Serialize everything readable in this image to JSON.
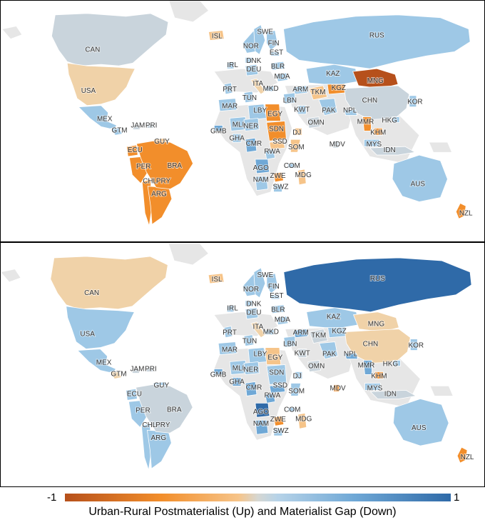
{
  "colors": {
    "neg_strong": "#b6501b",
    "neg_mid": "#f28e2b",
    "neg_light": "#f6c489",
    "tan": "#f0d2a8",
    "neutral": "#c9d4dc",
    "pos_light": "#9ec8e6",
    "pos_mid": "#6fa8d6",
    "pos_strong": "#2f6aa8",
    "land_na": "#e6e6e6",
    "ocean": "#ffffff"
  },
  "legend": {
    "min_label": "-1",
    "max_label": "1",
    "title": "Urban-Rural Postmaterialist (Up) and Materialist Gap (Down)"
  },
  "panels": [
    {
      "id": "postmaterialist",
      "countries": {
        "CAN": {
          "label": "CAN",
          "value": 0.0
        },
        "USA": {
          "label": "USA",
          "value": -0.3
        },
        "MEX": {
          "label": "MEX",
          "value": 0.3
        },
        "GTM": {
          "label": "GTM",
          "value": 0.2
        },
        "JAM": {
          "label": "JAM",
          "value": 0.1
        },
        "PRI": {
          "label": "PRI",
          "value": 0.1
        },
        "ECU": {
          "label": "ECU",
          "value": -0.5
        },
        "PER": {
          "label": "PER",
          "value": -0.5
        },
        "CHL": {
          "label": "CHL",
          "value": -0.5
        },
        "PRY": {
          "label": "PRY",
          "value": -0.5
        },
        "ARG": {
          "label": "ARG",
          "value": -0.5
        },
        "GUY": {
          "label": "GUY",
          "value": -0.4
        },
        "BRA": {
          "label": "BRA",
          "value": -0.5
        },
        "ISL": {
          "label": "ISL",
          "value": -0.4
        },
        "SWE": {
          "label": "SWE",
          "value": 0.3
        },
        "NOR": {
          "label": "NOR",
          "value": 0.3
        },
        "FIN": {
          "label": "FIN",
          "value": 0.3
        },
        "EST": {
          "label": "EST",
          "value": 0.3
        },
        "DNK": {
          "label": "DNK",
          "value": 0.3
        },
        "IRL": {
          "label": "IRL",
          "value": 0.2
        },
        "DEU": {
          "label": "DEU",
          "value": 0.3
        },
        "BLR": {
          "label": "BLR",
          "value": 0.3
        },
        "PRT": {
          "label": "PRT",
          "value": 0.2
        },
        "ITA": {
          "label": "ITA",
          "value": -0.3
        },
        "MDA": {
          "label": "MDA",
          "value": 0.3
        },
        "MKD": {
          "label": "MKD",
          "value": 0.3
        },
        "ARM": {
          "label": "ARM",
          "value": 0.3
        },
        "TKM": {
          "label": "TKM",
          "value": -0.4
        },
        "KGZ": {
          "label": "KGZ",
          "value": -0.6
        },
        "KAZ": {
          "label": "KAZ",
          "value": 0.3
        },
        "RUS": {
          "label": "RUS",
          "value": 0.3
        },
        "MNG": {
          "label": "MNG",
          "value": -0.7
        },
        "CHN": {
          "label": "CHN",
          "value": 0.0
        },
        "KOR": {
          "label": "KOR",
          "value": 0.3
        },
        "HKG": {
          "label": "HKG",
          "value": 0.2
        },
        "MMR": {
          "label": "MMR",
          "value": -0.5
        },
        "KHM": {
          "label": "KHM",
          "value": -0.5
        },
        "MYS": {
          "label": "MYS",
          "value": 0.2
        },
        "IDN": {
          "label": "IDN",
          "value": 0.1
        },
        "AUS": {
          "label": "AUS",
          "value": 0.3
        },
        "NZL": {
          "label": "NZL",
          "value": -0.5
        },
        "NPL": {
          "label": "NPL",
          "value": 0.3
        },
        "PAK": {
          "label": "PAK",
          "value": 0.2
        },
        "KWT": {
          "label": "KWT",
          "value": 0.2
        },
        "OMN": {
          "label": "OMN",
          "value": 0.1
        },
        "LBN": {
          "label": "LBN",
          "value": 0.3
        },
        "MDV": {
          "label": "MDV",
          "value": 0.0
        },
        "MAR": {
          "label": "MAR",
          "value": 0.3
        },
        "TUN": {
          "label": "TUN",
          "value": 0.3
        },
        "LBY": {
          "label": "LBY",
          "value": 0.3
        },
        "EGY": {
          "label": "EGY",
          "value": -0.5
        },
        "MLI": {
          "label": "MLI",
          "value": 0.3
        },
        "NER": {
          "label": "NER",
          "value": 0.3
        },
        "SDN": {
          "label": "SDN",
          "value": -0.5
        },
        "GMB": {
          "label": "GMB",
          "value": 0.4
        },
        "GHA": {
          "label": "GHA",
          "value": 0.3
        },
        "CMR": {
          "label": "CMR",
          "value": 0.4
        },
        "SSD": {
          "label": "SSD",
          "value": -0.4
        },
        "DJ": {
          "label": "DJ",
          "value": -0.4
        },
        "SOM": {
          "label": "SOM",
          "value": -0.4
        },
        "RWA": {
          "label": "RWA",
          "value": 0.3
        },
        "AGO": {
          "label": "AGO",
          "value": 0.4
        },
        "COM": {
          "label": "COM",
          "value": 0.3
        },
        "ZWE": {
          "label": "ZWE",
          "value": -0.5
        },
        "NAM": {
          "label": "NAM",
          "value": 0.3
        },
        "MDG": {
          "label": "MDG",
          "value": -0.4
        },
        "SWZ": {
          "label": "SWZ",
          "value": 0.3
        }
      }
    },
    {
      "id": "materialist",
      "countries": {
        "CAN": {
          "label": "CAN",
          "value": -0.3
        },
        "USA": {
          "label": "USA",
          "value": 0.3
        },
        "MEX": {
          "label": "MEX",
          "value": 0.3
        },
        "GTM": {
          "label": "GTM",
          "value": -0.3
        },
        "JAM": {
          "label": "JAM",
          "value": 0.1
        },
        "PRI": {
          "label": "PRI",
          "value": 0.1
        },
        "ECU": {
          "label": "ECU",
          "value": 0.3
        },
        "PER": {
          "label": "PER",
          "value": 0.3
        },
        "CHL": {
          "label": "CHL",
          "value": 0.3
        },
        "PRY": {
          "label": "PRY",
          "value": -0.5
        },
        "ARG": {
          "label": "ARG",
          "value": 0.3
        },
        "GUY": {
          "label": "GUY",
          "value": 0.3
        },
        "BRA": {
          "label": "BRA",
          "value": 0.1
        },
        "ISL": {
          "label": "ISL",
          "value": -0.4
        },
        "SWE": {
          "label": "SWE",
          "value": 0.3
        },
        "NOR": {
          "label": "NOR",
          "value": 0.3
        },
        "FIN": {
          "label": "FIN",
          "value": 0.3
        },
        "EST": {
          "label": "EST",
          "value": 0.3
        },
        "DNK": {
          "label": "DNK",
          "value": 0.3
        },
        "IRL": {
          "label": "IRL",
          "value": 0.2
        },
        "DEU": {
          "label": "DEU",
          "value": 0.3
        },
        "BLR": {
          "label": "BLR",
          "value": 0.3
        },
        "PRT": {
          "label": "PRT",
          "value": 0.2
        },
        "ITA": {
          "label": "ITA",
          "value": -0.3
        },
        "MDA": {
          "label": "MDA",
          "value": 0.3
        },
        "MKD": {
          "label": "MKD",
          "value": 0.3
        },
        "ARM": {
          "label": "ARM",
          "value": 0.4
        },
        "TKM": {
          "label": "TKM",
          "value": 0.0
        },
        "KGZ": {
          "label": "KGZ",
          "value": 0.3
        },
        "KAZ": {
          "label": "KAZ",
          "value": 0.3
        },
        "RUS": {
          "label": "RUS",
          "value": 0.5
        },
        "MNG": {
          "label": "MNG",
          "value": -0.3
        },
        "CHN": {
          "label": "CHN",
          "value": -0.3
        },
        "KOR": {
          "label": "KOR",
          "value": 0.3
        },
        "HKG": {
          "label": "HKG",
          "value": 0.2
        },
        "MMR": {
          "label": "MMR",
          "value": 0.4
        },
        "KHM": {
          "label": "KHM",
          "value": -0.5
        },
        "MYS": {
          "label": "MYS",
          "value": 0.2
        },
        "IDN": {
          "label": "IDN",
          "value": 0.1
        },
        "AUS": {
          "label": "AUS",
          "value": 0.3
        },
        "NZL": {
          "label": "NZL",
          "value": -0.5
        },
        "NPL": {
          "label": "NPL",
          "value": 0.4
        },
        "PAK": {
          "label": "PAK",
          "value": 0.3
        },
        "KWT": {
          "label": "KWT",
          "value": 0.0
        },
        "OMN": {
          "label": "OMN",
          "value": 0.1
        },
        "LBN": {
          "label": "LBN",
          "value": 0.3
        },
        "MDV": {
          "label": "MDV",
          "value": -0.5
        },
        "MAR": {
          "label": "MAR",
          "value": 0.3
        },
        "TUN": {
          "label": "TUN",
          "value": 0.3
        },
        "LBY": {
          "label": "LBY",
          "value": 0.3
        },
        "EGY": {
          "label": "EGY",
          "value": -0.4
        },
        "MLI": {
          "label": "MLI",
          "value": 0.3
        },
        "NER": {
          "label": "NER",
          "value": 0.3
        },
        "SDN": {
          "label": "SDN",
          "value": 0.3
        },
        "GMB": {
          "label": "GMB",
          "value": 0.4
        },
        "GHA": {
          "label": "GHA",
          "value": 0.4
        },
        "CMR": {
          "label": "CMR",
          "value": 0.4
        },
        "SSD": {
          "label": "SSD",
          "value": 0.4
        },
        "DJ": {
          "label": "DJ",
          "value": 0.3
        },
        "SOM": {
          "label": "SOM",
          "value": 0.3
        },
        "RWA": {
          "label": "RWA",
          "value": 0.4
        },
        "AGO": {
          "label": "AGO",
          "value": 0.5
        },
        "COM": {
          "label": "COM",
          "value": 0.3
        },
        "ZWE": {
          "label": "ZWE",
          "value": -0.5
        },
        "NAM": {
          "label": "NAM",
          "value": 0.4
        },
        "MDG": {
          "label": "MDG",
          "value": -0.4
        },
        "SWZ": {
          "label": "SWZ",
          "value": 0.3
        }
      }
    }
  ]
}
